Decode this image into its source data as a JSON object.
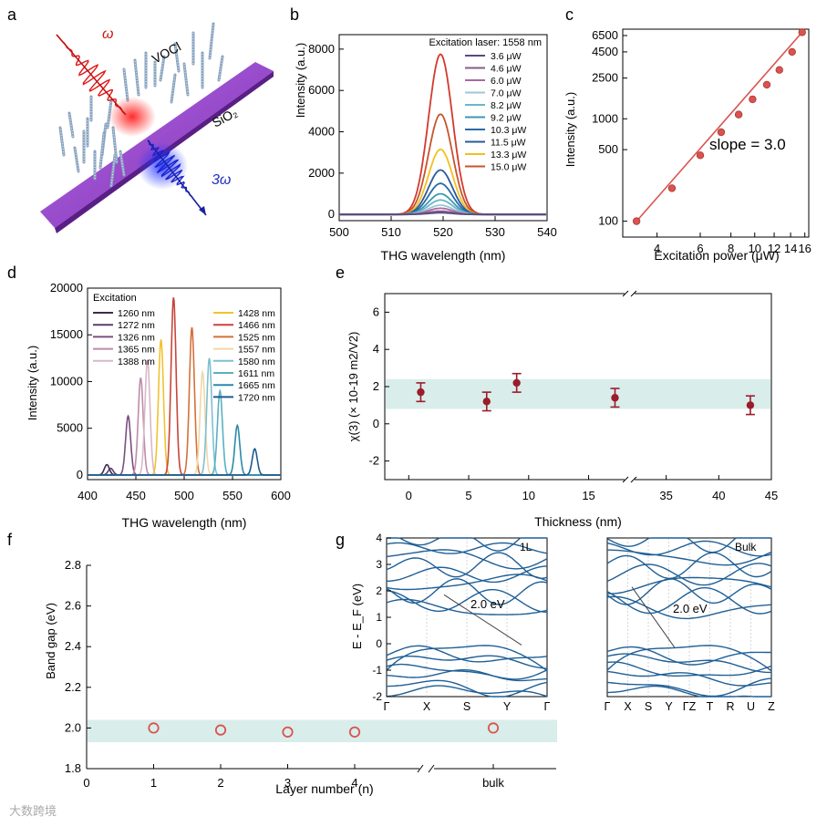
{
  "panels": {
    "a": {
      "label": "a",
      "omega": "ω",
      "three_omega": "3ω",
      "voci": "VOCl",
      "sio2": "SiO₂"
    },
    "b": {
      "label": "b",
      "title": "Excitation laser: 1558 nm",
      "legend_colors": [
        "#5a4a7e",
        "#8a5a8e",
        "#a86a9e",
        "#9ec7d6",
        "#6ab7c8",
        "#3a9ab2",
        "#2a6aaa",
        "#f2b01e",
        "#f4d84a",
        "#c5552e",
        "#d23a2e"
      ]
    },
    "g": {
      "label": "g",
      "ylabel": "E - E_F (eV)",
      "mono": {
        "tag": "1L",
        "gap": "2.0 eV",
        "kpoints": [
          "Γ",
          "X",
          "S",
          "Y",
          "Γ"
        ]
      },
      "bulk": {
        "tag": "Bulk",
        "gap": "2.0 eV",
        "kpoints": [
          "Γ",
          "X",
          "S",
          "Y",
          "ΓZ",
          "T",
          "R",
          "U",
          "Z"
        ]
      },
      "ytick_labels": [
        "4",
        "3",
        "2",
        "1",
        "0",
        "-1",
        "-2"
      ]
    },
    "watermark": "大数跨境"
  },
  "chart_data": [
    {
      "id": "b",
      "type": "line",
      "title": "Excitation laser: 1558 nm",
      "xlabel": "THG wavelength (nm)",
      "ylabel": "Intensity (a.u.)",
      "xlim": [
        500,
        540
      ],
      "ylim": [
        -300,
        8700
      ],
      "xticks": [
        500,
        510,
        520,
        530,
        540
      ],
      "yticks": [
        0,
        2000,
        4000,
        6000,
        8000
      ],
      "center": 519.5,
      "sigma": 2.3,
      "series": [
        {
          "name": "3.6 μW",
          "peak": 80,
          "color": "#5a4a7e"
        },
        {
          "name": "4.6 μW",
          "peak": 160,
          "color": "#8a5a8e"
        },
        {
          "name": "6.0 μW",
          "peak": 300,
          "color": "#a86a9e"
        },
        {
          "name": "7.0 μW",
          "peak": 450,
          "color": "#9ec7d6"
        },
        {
          "name": "8.2 μW",
          "peak": 700,
          "color": "#6ab7c8"
        },
        {
          "name": "9.2 μW",
          "peak": 1000,
          "color": "#3a9ab2"
        },
        {
          "name": "10.3 μW",
          "peak": 1500,
          "color": "#2a6aaa"
        },
        {
          "name": "11.5 μW",
          "peak": 2150,
          "color": "#2a5a9a"
        },
        {
          "name": "13.3 μW",
          "peak": 3150,
          "color": "#f2c01e"
        },
        {
          "name": "15.0 μW",
          "peak": 4850,
          "color": "#c5552e"
        },
        {
          "name": "",
          "peak": 7750,
          "color": "#d23a2e"
        }
      ]
    },
    {
      "id": "c",
      "type": "scatter",
      "xscale": "log",
      "yscale": "log",
      "xlabel": "Excitation power (μW)",
      "ylabel": "Intensity (a.u.)",
      "xlim": [
        2.9,
        16.6
      ],
      "ylim": [
        70,
        7500
      ],
      "xticks": [
        4,
        6,
        8,
        10,
        12,
        14,
        16
      ],
      "yticks": [
        100,
        500,
        1000,
        2500,
        4500,
        6500
      ],
      "x": [
        3.3,
        4.6,
        6.0,
        7.3,
        8.6,
        9.8,
        11.2,
        12.6,
        14.2,
        15.6
      ],
      "y": [
        100,
        210,
        440,
        740,
        1100,
        1550,
        2150,
        3000,
        4500,
        7000
      ],
      "annotation": "slope = 3.0",
      "color": "#d9534f"
    },
    {
      "id": "d",
      "type": "line",
      "xlabel": "THG wavelength (nm)",
      "ylabel": "Intensity (a.u.)",
      "xlim": [
        400,
        600
      ],
      "ylim": [
        -500,
        20000
      ],
      "xticks": [
        400,
        450,
        500,
        550,
        600
      ],
      "yticks": [
        0,
        5000,
        10000,
        15000,
        20000
      ],
      "legend_title": "Excitation",
      "series": [
        {
          "name": "1260 nm",
          "center": 420,
          "peak": 1100,
          "color": "#3d2a4e"
        },
        {
          "name": "1272 nm",
          "center": 424,
          "peak": 700,
          "color": "#5a3f6e"
        },
        {
          "name": "1326 nm",
          "center": 442,
          "peak": 6300,
          "color": "#7a4f7e"
        },
        {
          "name": "1365 nm",
          "center": 455,
          "peak": 10400,
          "color": "#c08aa8"
        },
        {
          "name": "1388 nm",
          "center": 462,
          "peak": 12300,
          "color": "#d8b8c8"
        },
        {
          "name": "1428 nm",
          "center": 476,
          "peak": 14500,
          "color": "#f2c230"
        },
        {
          "name": "1466 nm",
          "center": 489,
          "peak": 19000,
          "color": "#c8453a"
        },
        {
          "name": "1525 nm",
          "center": 508,
          "peak": 15800,
          "color": "#d5703a"
        },
        {
          "name": "1557 nm",
          "center": 519,
          "peak": 11000,
          "color": "#f0d8a8"
        },
        {
          "name": "1580 nm",
          "center": 526,
          "peak": 12500,
          "color": "#7ec0d0"
        },
        {
          "name": "1611 nm",
          "center": 537,
          "peak": 9000,
          "color": "#5ab0c0"
        },
        {
          "name": "1665 nm",
          "center": 555,
          "peak": 5300,
          "color": "#2a8aa8"
        },
        {
          "name": "1720 nm",
          "center": 573,
          "peak": 2800,
          "color": "#1f5a92"
        }
      ]
    },
    {
      "id": "e",
      "type": "scatter",
      "xlabel": "Thickness (nm)",
      "ylabel": "χ(3) (× 10-19 m2/V2)",
      "xlim": [
        -2,
        45
      ],
      "ylim": [
        -3,
        7
      ],
      "xticks": [
        0,
        5,
        10,
        15,
        35,
        40,
        45
      ],
      "yticks": [
        -2,
        0,
        2,
        4,
        6
      ],
      "x": [
        1,
        6.5,
        9,
        17.2,
        43
      ],
      "y": [
        1.7,
        1.2,
        2.2,
        1.4,
        1.0
      ],
      "yerr": [
        0.5,
        0.5,
        0.5,
        0.5,
        0.5
      ],
      "band": [
        0.8,
        2.4
      ],
      "color": "#9b1c2a"
    },
    {
      "id": "f",
      "type": "scatter",
      "xlabel": "Layer number (n)",
      "ylabel": "Band gap (eV)",
      "xlim": [
        0,
        7
      ],
      "ylim": [
        1.8,
        2.8
      ],
      "xticks": [
        0,
        1,
        2,
        3,
        4
      ],
      "xtick_extra": "bulk",
      "yticks": [
        1.8,
        2.0,
        2.2,
        2.4,
        2.6,
        2.8
      ],
      "x": [
        1,
        2,
        3,
        4,
        6
      ],
      "x_labels": [
        "1",
        "2",
        "3",
        "4",
        "bulk"
      ],
      "y": [
        2.0,
        1.99,
        1.98,
        1.98,
        2.0
      ],
      "band": [
        1.93,
        2.04
      ],
      "color": "#d9534f"
    }
  ]
}
